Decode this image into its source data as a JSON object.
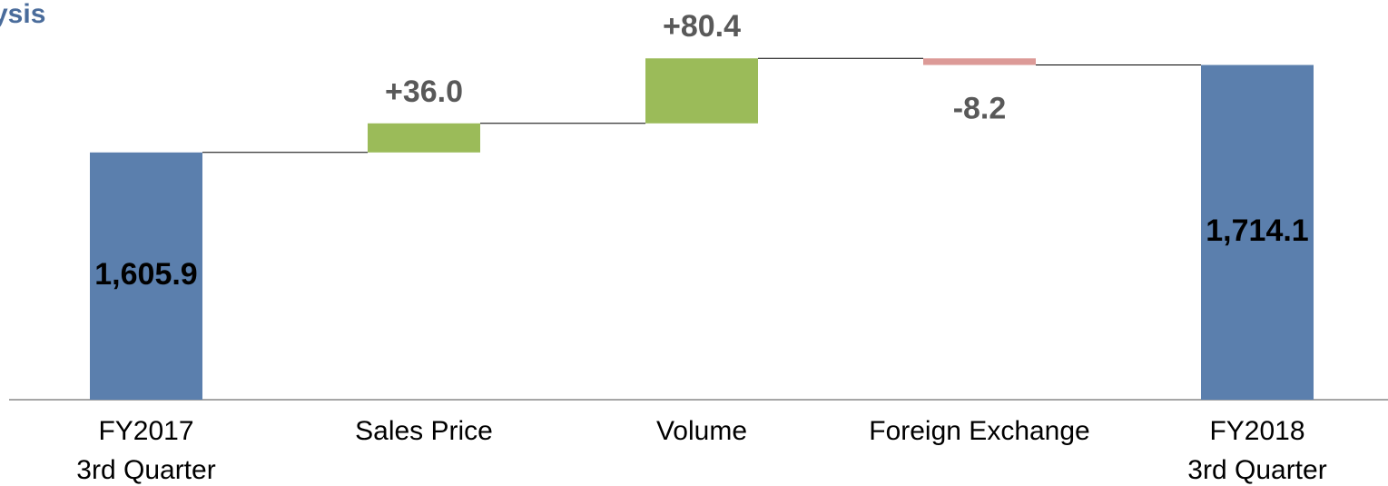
{
  "chart_data": {
    "type": "waterfall",
    "title": "ysis",
    "categories": [
      [
        "FY2017",
        "3rd Quarter"
      ],
      [
        "Sales Price"
      ],
      [
        "Volume"
      ],
      [
        "Foreign Exchange"
      ],
      [
        "FY2018",
        "3rd Quarter"
      ]
    ],
    "measure": [
      "absolute",
      "relative",
      "relative",
      "relative",
      "total"
    ],
    "values": [
      1605.9,
      36.0,
      80.4,
      -8.2,
      1714.1
    ],
    "value_labels": [
      "1,605.9",
      "+36.0",
      "+80.4",
      "-8.2",
      "1,714.1"
    ],
    "total_color": "#5b7fad",
    "increase_color": "#9bbb59",
    "decrease_color": "#dc9a97",
    "ylim": [
      1300,
      1790
    ]
  }
}
